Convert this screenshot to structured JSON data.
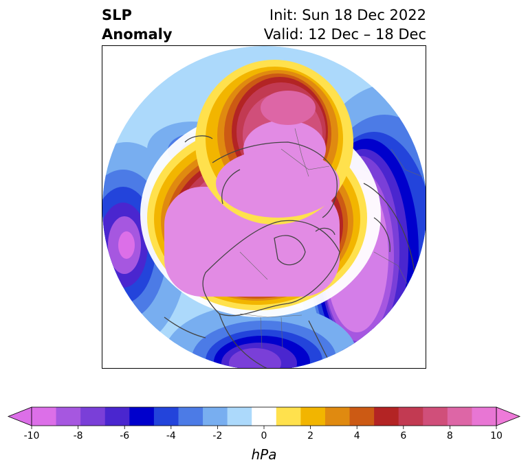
{
  "title": {
    "line1": "SLP",
    "line2": "Anomaly"
  },
  "init": {
    "line1": "Init: Sun 18 Dec 2022",
    "line2": "Valid: 12 Dec – 18 Dec"
  },
  "colorbar": {
    "unit": "hPa",
    "ticks": [
      "-10",
      "-8",
      "-6",
      "-4",
      "-2",
      "0",
      "2",
      "4",
      "6",
      "8",
      "10"
    ],
    "colors": [
      "#dc6fe8",
      "#a657e0",
      "#7a3fd8",
      "#4a26cf",
      "#0000cc",
      "#2344db",
      "#4c7be6",
      "#78aef0",
      "#acd9fb",
      "#ffffff",
      "#ffe14d",
      "#f2b500",
      "#e08a10",
      "#cc5a14",
      "#b32424",
      "#c23a52",
      "#d04f7a",
      "#dd66a6",
      "#e876d4"
    ],
    "lower_extend_color": "#dc6fe8",
    "upper_extend_color": "#ee7ad9"
  },
  "map": {
    "projection": "north-polar-stereographic",
    "field": "sea-level pressure anomaly",
    "color_low": "#d47ee8",
    "color_high": "#e28be4"
  }
}
